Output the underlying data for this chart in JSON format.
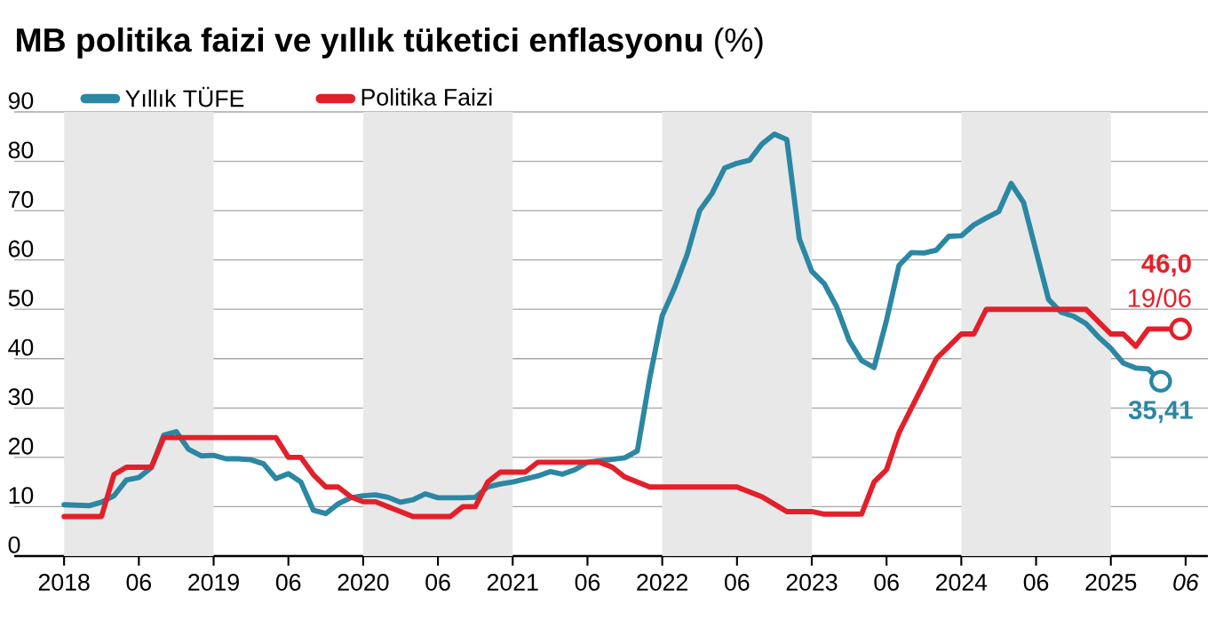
{
  "chart_data": {
    "type": "line",
    "title": "**MB politika faizi ve yıllık tüketici enflasyonu** (%)",
    "series": [
      {
        "name": "Yıllık TÜFE",
        "color": "#2b87a3",
        "x": [
          "2018-01",
          "2018-02",
          "2018-03",
          "2018-04",
          "2018-05",
          "2018-06",
          "2018-07",
          "2018-08",
          "2018-09",
          "2018-10",
          "2018-11",
          "2018-12",
          "2019-01",
          "2019-02",
          "2019-03",
          "2019-04",
          "2019-05",
          "2019-06",
          "2019-07",
          "2019-08",
          "2019-09",
          "2019-10",
          "2019-11",
          "2019-12",
          "2020-01",
          "2020-02",
          "2020-03",
          "2020-04",
          "2020-05",
          "2020-06",
          "2020-07",
          "2020-08",
          "2020-09",
          "2020-10",
          "2020-11",
          "2020-12",
          "2021-01",
          "2021-02",
          "2021-03",
          "2021-04",
          "2021-05",
          "2021-06",
          "2021-07",
          "2021-08",
          "2021-09",
          "2021-10",
          "2021-11",
          "2021-12",
          "2022-01",
          "2022-02",
          "2022-03",
          "2022-04",
          "2022-05",
          "2022-06",
          "2022-07",
          "2022-08",
          "2022-09",
          "2022-10",
          "2022-11",
          "2022-12",
          "2023-01",
          "2023-02",
          "2023-03",
          "2023-04",
          "2023-05",
          "2023-06",
          "2023-07",
          "2023-08",
          "2023-09",
          "2023-10",
          "2023-11",
          "2023-12",
          "2024-01",
          "2024-02",
          "2024-03",
          "2024-04",
          "2024-05",
          "2024-06",
          "2024-07",
          "2024-08",
          "2024-09",
          "2024-10",
          "2024-11",
          "2024-12",
          "2025-01",
          "2025-02",
          "2025-03",
          "2025-04",
          "2025-05"
        ],
        "values": [
          10.4,
          10.3,
          10.2,
          10.9,
          12.2,
          15.4,
          15.9,
          17.9,
          24.5,
          25.2,
          21.6,
          20.3,
          20.4,
          19.7,
          19.7,
          19.5,
          18.7,
          15.7,
          16.7,
          15.0,
          9.3,
          8.6,
          10.6,
          11.8,
          12.2,
          12.4,
          11.9,
          10.9,
          11.4,
          12.6,
          11.8,
          11.8,
          11.8,
          11.9,
          14.0,
          14.6,
          15.0,
          15.6,
          16.2,
          17.1,
          16.6,
          17.5,
          19.0,
          19.3,
          19.6,
          19.9,
          21.3,
          36.1,
          48.7,
          54.4,
          61.1,
          70.0,
          73.5,
          78.6,
          79.6,
          80.2,
          83.5,
          85.5,
          84.4,
          64.3,
          57.7,
          55.2,
          50.5,
          43.7,
          39.6,
          38.2,
          47.8,
          58.9,
          61.5,
          61.4,
          62.0,
          64.8,
          64.9,
          67.1,
          68.5,
          69.8,
          75.5,
          71.6,
          61.8,
          52.0,
          49.4,
          48.6,
          47.1,
          44.4,
          42.1,
          39.1,
          38.1,
          37.9,
          35.41
        ]
      },
      {
        "name": "Politika Faizi",
        "color": "#e3202a",
        "x": [
          "2018-01",
          "2018-02",
          "2018-03",
          "2018-04",
          "2018-05",
          "2018-06",
          "2018-07",
          "2018-08",
          "2018-09",
          "2018-10",
          "2018-11",
          "2018-12",
          "2019-01",
          "2019-02",
          "2019-03",
          "2019-04",
          "2019-05",
          "2019-06",
          "2019-07",
          "2019-08",
          "2019-09",
          "2019-10",
          "2019-11",
          "2019-12",
          "2020-01",
          "2020-02",
          "2020-03",
          "2020-04",
          "2020-05",
          "2020-06",
          "2020-07",
          "2020-08",
          "2020-09",
          "2020-10",
          "2020-11",
          "2020-12",
          "2021-01",
          "2021-02",
          "2021-03",
          "2021-04",
          "2021-05",
          "2021-06",
          "2021-07",
          "2021-08",
          "2021-09",
          "2021-10",
          "2021-11",
          "2021-12",
          "2022-01",
          "2022-02",
          "2022-03",
          "2022-04",
          "2022-05",
          "2022-06",
          "2022-07",
          "2022-08",
          "2022-09",
          "2022-10",
          "2022-11",
          "2022-12",
          "2023-01",
          "2023-02",
          "2023-03",
          "2023-04",
          "2023-05",
          "2023-06",
          "2023-07",
          "2023-08",
          "2023-09",
          "2023-10",
          "2023-11",
          "2023-12",
          "2024-01",
          "2024-02",
          "2024-03",
          "2024-04",
          "2024-05",
          "2024-06",
          "2024-07",
          "2024-08",
          "2024-09",
          "2024-10",
          "2024-11",
          "2024-12",
          "2025-01",
          "2025-02",
          "2025-03",
          "2025-04",
          "2025-05",
          "2025-06-19"
        ],
        "values": [
          8,
          8,
          8,
          8,
          16.5,
          18,
          18,
          18,
          24,
          24,
          24,
          24,
          24,
          24,
          24,
          24,
          24,
          24,
          20,
          20,
          16.5,
          14,
          14,
          12,
          11,
          11,
          10,
          9,
          8,
          8,
          8,
          8,
          10,
          10,
          15,
          17,
          17,
          17,
          19,
          19,
          19,
          19,
          19,
          19,
          18,
          16,
          15,
          14,
          14,
          14,
          14,
          14,
          14,
          14,
          14,
          13,
          12,
          10.5,
          9,
          9,
          9,
          8.5,
          8.5,
          8.5,
          8.5,
          15,
          17.5,
          25,
          30,
          35,
          40,
          42.5,
          45,
          45,
          50,
          50,
          50,
          50,
          50,
          50,
          50,
          50,
          50,
          47.5,
          45,
          45,
          42.5,
          46,
          46,
          46
        ]
      }
    ],
    "xlim": [
      "2017-09-01",
      "2025-08-25"
    ],
    "xticks": [
      {
        "value": "2018",
        "label": "2018"
      },
      {
        "value": "2018-07-01",
        "label": "06"
      },
      {
        "value": "2019",
        "label": "2019"
      },
      {
        "value": "2019-07-01",
        "label": "06"
      },
      {
        "value": "2020",
        "label": "2020"
      },
      {
        "value": "2020-07-01",
        "label": "06"
      },
      {
        "value": "2021",
        "label": "2021"
      },
      {
        "value": "2021-07-01",
        "label": "06"
      },
      {
        "value": "2022",
        "label": "2022"
      },
      {
        "value": "2022-07-01",
        "label": "06"
      },
      {
        "value": "2023",
        "label": "2023"
      },
      {
        "value": "2023-07-01",
        "label": "06"
      },
      {
        "value": "2024",
        "label": "2024"
      },
      {
        "value": "2024-07-01",
        "label": "06"
      },
      {
        "value": "2025",
        "label": "2025"
      },
      {
        "value": "2025-07-01",
        "label": "*06*"
      }
    ],
    "ylim": [
      0,
      90
    ],
    "yticks": [
      0,
      10,
      20,
      30,
      40,
      50,
      60,
      70,
      80,
      90
    ],
    "grid": "y",
    "legend": "top left",
    "bands": [
      {
        "axis": "x",
        "from": "2018",
        "to": "2019",
        "color": "#e8e8e8"
      },
      {
        "axis": "x",
        "from": "2020",
        "to": "2021",
        "color": "#e8e8e8"
      },
      {
        "axis": "x",
        "from": "2022",
        "to": "2023",
        "color": "#e8e8e8"
      },
      {
        "axis": "x",
        "from": "2024",
        "to": "2025",
        "color": "#e8e8e8"
      }
    ],
    "annotations": [
      {
        "text": "**46,0**",
        "x": "2025-06-19",
        "y": 46
      },
      {
        "text": "19/06",
        "x": "2025-06-19",
        "y": 46
      },
      {
        "text": "**35,41**",
        "x": "2025-05",
        "y": 35.41
      }
    ]
  }
}
